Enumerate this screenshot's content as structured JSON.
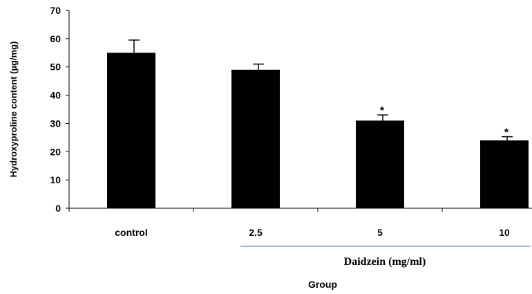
{
  "chart_data": {
    "type": "bar",
    "categories": [
      "control",
      "2.5",
      "5",
      "10"
    ],
    "values": [
      55,
      49,
      31,
      24
    ],
    "errors": [
      4.5,
      2,
      2,
      1.3
    ],
    "significance": [
      "",
      "",
      "*",
      "*"
    ],
    "ylabel": "Hydroxyproline content (µg/mg)",
    "xlabel": "Group",
    "group_label": "Daidzein (mg/ml)",
    "ylim": [
      0,
      70
    ],
    "yticks": [
      0,
      10,
      20,
      30,
      40,
      50,
      60,
      70
    ],
    "bar_color": "#000000",
    "group_line_color": "#5b8fd6",
    "grid": false
  }
}
